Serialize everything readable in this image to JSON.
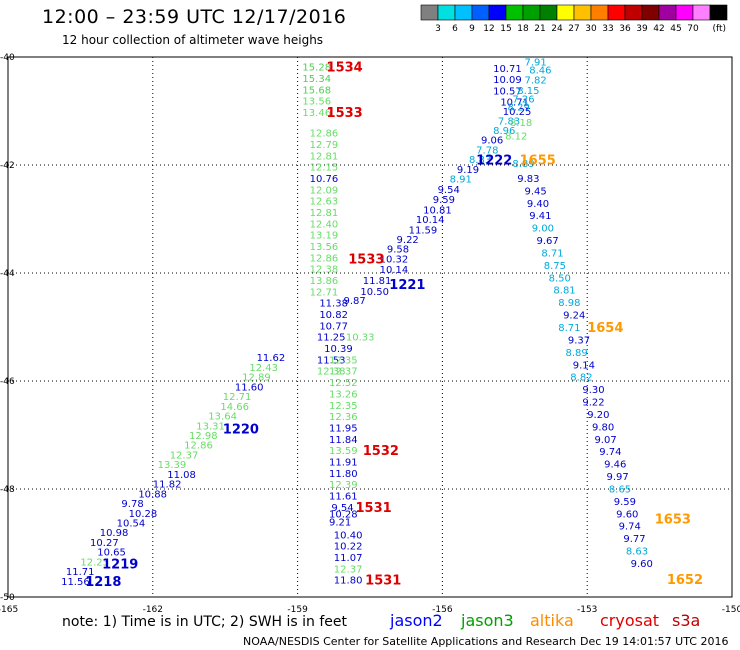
{
  "title": "12:00 – 23:59 UTC 12/17/2016",
  "subtitle": "12 hour collection of altimeter wave heighs",
  "colorbar": {
    "colors": [
      "#808080",
      "#00e0e0",
      "#00c0ff",
      "#0060ff",
      "#0000ff",
      "#00c000",
      "#00a000",
      "#008000",
      "#ffff00",
      "#ffc000",
      "#ff8000",
      "#ff0000",
      "#c00000",
      "#800000",
      "#a000a0",
      "#ff00ff",
      "#ff80ff",
      "#000000"
    ],
    "labels": [
      "3",
      "6",
      "9",
      "12",
      "15",
      "18",
      "21",
      "24",
      "27",
      "30",
      "33",
      "36",
      "39",
      "42",
      "45",
      "70"
    ],
    "unit": "(ft)"
  },
  "footer": {
    "note": "note: 1) Time is in UTC; 2) SWH is in feet",
    "credit": "NOAA/NESDIS Center for Satellite Applications and Research",
    "timestamp": "Dec 19 14:01:57 UTC 2016"
  },
  "legend": [
    {
      "name": "jason2",
      "color": "#0000ff"
    },
    {
      "name": "jason3",
      "color": "#00a000"
    },
    {
      "name": "altika",
      "color": "#ff8c00"
    },
    {
      "name": "cryosat",
      "color": "#e00000"
    },
    {
      "name": "s3a",
      "color": "#c00000"
    }
  ],
  "colors": {
    "light_green": "#66dd66",
    "green": "#55cc55",
    "dark_blue": "#0000cc",
    "cyan": "#00aadd",
    "red": "#dd0000",
    "orange": "#ff9900"
  },
  "chart_data": {
    "type": "scatter",
    "xlim": [
      -165,
      -150
    ],
    "ylim": [
      -50,
      -40
    ],
    "xticks": [
      -165,
      -162,
      -159,
      -156,
      -153,
      -150
    ],
    "xtick_labels": [
      "-165",
      "-162",
      "-159",
      "-156",
      "-153",
      "-150"
    ],
    "yticks": [
      -40,
      -42,
      -44,
      -46,
      -48,
      -50
    ],
    "ytick_labels": [
      "-40",
      "-42",
      "-44",
      "-46",
      "-48",
      "-50"
    ],
    "grid": true,
    "points": [
      {
        "x": -158.9,
        "y": -40.18,
        "v": "15.28",
        "c": "dgreen"
      },
      {
        "x": -158.9,
        "y": -40.39,
        "v": "15.34",
        "c": "dgreen"
      },
      {
        "x": -158.9,
        "y": -40.6,
        "v": "15.68",
        "c": "dgreen"
      },
      {
        "x": -158.9,
        "y": -40.81,
        "v": "13.56",
        "c": "lgreen"
      },
      {
        "x": -158.9,
        "y": -41.02,
        "v": "13.46",
        "c": "lgreen"
      },
      {
        "x": -158.75,
        "y": -41.4,
        "v": "12.86",
        "c": "lgreen"
      },
      {
        "x": -158.75,
        "y": -41.61,
        "v": "12.79",
        "c": "lgreen"
      },
      {
        "x": -158.75,
        "y": -41.82,
        "v": "12.81",
        "c": "lgreen"
      },
      {
        "x": -158.75,
        "y": -42.03,
        "v": "12.15",
        "c": "lgreen"
      },
      {
        "x": -158.75,
        "y": -42.24,
        "v": "10.76",
        "c": "blue"
      },
      {
        "x": -158.75,
        "y": -42.45,
        "v": "12.09",
        "c": "lgreen"
      },
      {
        "x": -158.75,
        "y": -42.66,
        "v": "12.63",
        "c": "lgreen"
      },
      {
        "x": -158.75,
        "y": -42.87,
        "v": "12.81",
        "c": "lgreen"
      },
      {
        "x": -158.75,
        "y": -43.08,
        "v": "12.40",
        "c": "lgreen"
      },
      {
        "x": -158.75,
        "y": -43.29,
        "v": "13.19",
        "c": "lgreen"
      },
      {
        "x": -158.75,
        "y": -43.5,
        "v": "13.56",
        "c": "lgreen"
      },
      {
        "x": -158.75,
        "y": -43.71,
        "v": "12.86",
        "c": "lgreen"
      },
      {
        "x": -158.75,
        "y": -43.92,
        "v": "12.38",
        "c": "lgreen"
      },
      {
        "x": -158.75,
        "y": -44.13,
        "v": "13.86",
        "c": "lgreen"
      },
      {
        "x": -158.75,
        "y": -44.34,
        "v": "12.71",
        "c": "lgreen"
      },
      {
        "x": -158.55,
        "y": -44.55,
        "v": "11.38",
        "c": "blue"
      },
      {
        "x": -158.55,
        "y": -44.76,
        "v": "10.82",
        "c": "blue"
      },
      {
        "x": -158.55,
        "y": -44.97,
        "v": "10.77",
        "c": "blue"
      },
      {
        "x": -158.6,
        "y": -45.18,
        "v": "11.25",
        "c": "blue"
      },
      {
        "x": -158.45,
        "y": -45.39,
        "v": "10.39",
        "c": "blue"
      },
      {
        "x": -158.6,
        "y": -45.6,
        "v": "11.53",
        "c": "blue"
      },
      {
        "x": -158.35,
        "y": -45.6,
        "v": "12.35",
        "c": "lgreen"
      },
      {
        "x": -158.6,
        "y": -45.81,
        "v": "12.38",
        "c": "lgreen"
      },
      {
        "x": -158.35,
        "y": -45.81,
        "v": "12.37",
        "c": "lgreen"
      },
      {
        "x": -158.35,
        "y": -46.02,
        "v": "12.52",
        "c": "lgreen"
      },
      {
        "x": -158.35,
        "y": -46.23,
        "v": "13.26",
        "c": "lgreen"
      },
      {
        "x": -158.35,
        "y": -46.44,
        "v": "12.35",
        "c": "lgreen"
      },
      {
        "x": -158.35,
        "y": -46.65,
        "v": "12.36",
        "c": "lgreen"
      },
      {
        "x": -158.35,
        "y": -46.86,
        "v": "11.95",
        "c": "blue"
      },
      {
        "x": -158.35,
        "y": -47.07,
        "v": "11.84",
        "c": "blue"
      },
      {
        "x": -158.35,
        "y": -47.28,
        "v": "13.59",
        "c": "lgreen"
      },
      {
        "x": -158.35,
        "y": -47.49,
        "v": "11.91",
        "c": "blue"
      },
      {
        "x": -158.35,
        "y": -47.7,
        "v": "11.80",
        "c": "blue"
      },
      {
        "x": -158.35,
        "y": -47.91,
        "v": "12.39",
        "c": "lgreen"
      },
      {
        "x": -158.35,
        "y": -48.12,
        "v": "11.61",
        "c": "blue"
      },
      {
        "x": -158.3,
        "y": -48.33,
        "v": "9.54",
        "c": "blue"
      },
      {
        "x": -158.35,
        "y": -48.45,
        "v": "10.28",
        "c": "blue"
      },
      {
        "x": -158.35,
        "y": -48.6,
        "v": "9.21",
        "c": "blue"
      },
      {
        "x": -158.25,
        "y": -48.84,
        "v": "10.40",
        "c": "blue"
      },
      {
        "x": -158.25,
        "y": -49.05,
        "v": "10.22",
        "c": "blue"
      },
      {
        "x": -158.25,
        "y": -49.26,
        "v": "11.07",
        "c": "blue"
      },
      {
        "x": -158.25,
        "y": -49.47,
        "v": "12.37",
        "c": "lgreen"
      },
      {
        "x": -158.25,
        "y": -49.68,
        "v": "11.80",
        "c": "blue"
      },
      {
        "x": -163.9,
        "y": -49.7,
        "v": "11.56",
        "c": "blue"
      },
      {
        "x": -163.8,
        "y": -49.52,
        "v": "11.71",
        "c": "blue"
      },
      {
        "x": -163.5,
        "y": -49.34,
        "v": "12.23",
        "c": "lgreen"
      },
      {
        "x": -163.15,
        "y": -49.16,
        "v": "10.65",
        "c": "blue"
      },
      {
        "x": -163.3,
        "y": -48.98,
        "v": "10.27",
        "c": "blue"
      },
      {
        "x": -163.1,
        "y": -48.8,
        "v": "10.98",
        "c": "blue"
      },
      {
        "x": -162.75,
        "y": -48.62,
        "v": "10.54",
        "c": "blue"
      },
      {
        "x": -162.5,
        "y": -48.44,
        "v": "10.28",
        "c": "blue"
      },
      {
        "x": -162.65,
        "y": -48.26,
        "v": "9.78",
        "c": "blue"
      },
      {
        "x": -162.3,
        "y": -48.08,
        "v": "10.88",
        "c": "blue"
      },
      {
        "x": -162.0,
        "y": -47.9,
        "v": "11.82",
        "c": "blue"
      },
      {
        "x": -161.7,
        "y": -47.72,
        "v": "11.08",
        "c": "blue"
      },
      {
        "x": -161.9,
        "y": -47.54,
        "v": "13.39",
        "c": "lgreen"
      },
      {
        "x": -161.65,
        "y": -47.36,
        "v": "12.37",
        "c": "lgreen"
      },
      {
        "x": -161.35,
        "y": -47.18,
        "v": "12.86",
        "c": "lgreen"
      },
      {
        "x": -161.25,
        "y": -47.0,
        "v": "12.98",
        "c": "lgreen"
      },
      {
        "x": -161.1,
        "y": -46.82,
        "v": "13.31",
        "c": "lgreen"
      },
      {
        "x": -160.85,
        "y": -46.64,
        "v": "13.64",
        "c": "lgreen"
      },
      {
        "x": -160.6,
        "y": -46.46,
        "v": "14.66",
        "c": "lgreen"
      },
      {
        "x": -160.55,
        "y": -46.28,
        "v": "12.71",
        "c": "lgreen"
      },
      {
        "x": -160.3,
        "y": -46.1,
        "v": "11.60",
        "c": "blue"
      },
      {
        "x": -160.15,
        "y": -45.92,
        "v": "12.89",
        "c": "lgreen"
      },
      {
        "x": -160.0,
        "y": -45.74,
        "v": "12.43",
        "c": "lgreen"
      },
      {
        "x": -159.85,
        "y": -45.56,
        "v": "11.62",
        "c": "blue"
      },
      {
        "x": -158.0,
        "y": -45.18,
        "v": "10.33",
        "c": "lgreen"
      },
      {
        "x": -158.05,
        "y": -44.5,
        "v": "9.87",
        "c": "blue"
      },
      {
        "x": -157.7,
        "y": -44.33,
        "v": "10.50",
        "c": "blue"
      },
      {
        "x": -157.65,
        "y": -44.13,
        "v": "11.81",
        "c": "blue"
      },
      {
        "x": -157.3,
        "y": -43.93,
        "v": "10.14",
        "c": "blue"
      },
      {
        "x": -157.3,
        "y": -43.73,
        "v": "10.32",
        "c": "blue"
      },
      {
        "x": -157.15,
        "y": -43.55,
        "v": "9.58",
        "c": "blue"
      },
      {
        "x": -156.95,
        "y": -43.37,
        "v": "9.22",
        "c": "blue"
      },
      {
        "x": -156.7,
        "y": -43.19,
        "v": "11.59",
        "c": "blue"
      },
      {
        "x": -156.55,
        "y": -43.0,
        "v": "10.14",
        "c": "blue"
      },
      {
        "x": -156.4,
        "y": -42.82,
        "v": "10.81",
        "c": "blue"
      },
      {
        "x": -156.2,
        "y": -42.63,
        "v": "9.59",
        "c": "blue"
      },
      {
        "x": -156.1,
        "y": -42.44,
        "v": "9.54",
        "c": "blue"
      },
      {
        "x": -155.85,
        "y": -42.25,
        "v": "8.91",
        "c": "cyan"
      },
      {
        "x": -155.7,
        "y": -42.07,
        "v": "9.19",
        "c": "blue"
      },
      {
        "x": -155.45,
        "y": -41.89,
        "v": "8.83",
        "c": "cyan"
      },
      {
        "x": -155.3,
        "y": -41.71,
        "v": "7.78",
        "c": "cyan"
      },
      {
        "x": -155.2,
        "y": -41.53,
        "v": "9.06",
        "c": "blue"
      },
      {
        "x": -154.95,
        "y": -41.35,
        "v": "8.96",
        "c": "cyan"
      },
      {
        "x": -154.85,
        "y": -41.18,
        "v": "7.83",
        "c": "cyan"
      },
      {
        "x": -154.75,
        "y": -41.0,
        "v": "10.25",
        "c": "blue"
      },
      {
        "x": -154.8,
        "y": -40.82,
        "v": "10.71",
        "c": "blue"
      },
      {
        "x": -154.95,
        "y": -40.62,
        "v": "10.57",
        "c": "blue"
      },
      {
        "x": -154.95,
        "y": -40.41,
        "v": "10.09",
        "c": "blue"
      },
      {
        "x": -154.95,
        "y": -40.2,
        "v": "10.71",
        "c": "blue"
      },
      {
        "x": -154.3,
        "y": -40.08,
        "v": "7.91",
        "c": "cyan"
      },
      {
        "x": -154.2,
        "y": -40.23,
        "v": "8.46",
        "c": "cyan"
      },
      {
        "x": -154.3,
        "y": -40.42,
        "v": "7.82",
        "c": "cyan"
      },
      {
        "x": -154.45,
        "y": -40.61,
        "v": "8.15",
        "c": "cyan"
      },
      {
        "x": -154.55,
        "y": -40.77,
        "v": "7.26",
        "c": "cyan"
      },
      {
        "x": -154.65,
        "y": -40.92,
        "v": "8.29",
        "c": "cyan"
      },
      {
        "x": -154.6,
        "y": -41.2,
        "v": "8.18",
        "c": "lgreen"
      },
      {
        "x": -154.7,
        "y": -41.45,
        "v": "8.12",
        "c": "lgreen"
      },
      {
        "x": -154.55,
        "y": -41.96,
        "v": "8.89",
        "c": "cyan"
      },
      {
        "x": -154.45,
        "y": -42.24,
        "v": "9.83",
        "c": "blue"
      },
      {
        "x": -154.3,
        "y": -42.47,
        "v": "9.45",
        "c": "blue"
      },
      {
        "x": -154.25,
        "y": -42.7,
        "v": "9.40",
        "c": "blue"
      },
      {
        "x": -154.2,
        "y": -42.93,
        "v": "9.41",
        "c": "blue"
      },
      {
        "x": -154.15,
        "y": -43.16,
        "v": "9.00",
        "c": "cyan"
      },
      {
        "x": -154.05,
        "y": -43.39,
        "v": "9.67",
        "c": "blue"
      },
      {
        "x": -153.95,
        "y": -43.62,
        "v": "8.71",
        "c": "cyan"
      },
      {
        "x": -153.9,
        "y": -43.85,
        "v": "8.75",
        "c": "cyan"
      },
      {
        "x": -153.8,
        "y": -44.08,
        "v": "8.50",
        "c": "cyan"
      },
      {
        "x": -153.7,
        "y": -44.31,
        "v": "8.81",
        "c": "cyan"
      },
      {
        "x": -153.6,
        "y": -44.54,
        "v": "8.98",
        "c": "cyan"
      },
      {
        "x": -153.5,
        "y": -44.77,
        "v": "9.24",
        "c": "blue"
      },
      {
        "x": -153.6,
        "y": -45.0,
        "v": "8.71",
        "c": "cyan"
      },
      {
        "x": -153.4,
        "y": -45.23,
        "v": "9.37",
        "c": "blue"
      },
      {
        "x": -153.45,
        "y": -45.46,
        "v": "8.89",
        "c": "cyan"
      },
      {
        "x": -153.3,
        "y": -45.69,
        "v": "9.14",
        "c": "blue"
      },
      {
        "x": -153.35,
        "y": -45.92,
        "v": "8.82",
        "c": "cyan"
      },
      {
        "x": -153.1,
        "y": -46.15,
        "v": "9.30",
        "c": "blue"
      },
      {
        "x": -153.1,
        "y": -46.38,
        "v": "9.22",
        "c": "blue"
      },
      {
        "x": -153.0,
        "y": -46.61,
        "v": "9.20",
        "c": "blue"
      },
      {
        "x": -152.9,
        "y": -46.84,
        "v": "9.80",
        "c": "blue"
      },
      {
        "x": -152.85,
        "y": -47.07,
        "v": "9.07",
        "c": "blue"
      },
      {
        "x": -152.75,
        "y": -47.3,
        "v": "9.74",
        "c": "blue"
      },
      {
        "x": -152.65,
        "y": -47.53,
        "v": "9.46",
        "c": "blue"
      },
      {
        "x": -152.6,
        "y": -47.76,
        "v": "9.97",
        "c": "blue"
      },
      {
        "x": -152.55,
        "y": -47.99,
        "v": "8.65",
        "c": "cyan"
      },
      {
        "x": -152.45,
        "y": -48.22,
        "v": "9.59",
        "c": "blue"
      },
      {
        "x": -152.4,
        "y": -48.45,
        "v": "9.60",
        "c": "blue"
      },
      {
        "x": -152.35,
        "y": -48.68,
        "v": "9.74",
        "c": "blue"
      },
      {
        "x": -152.25,
        "y": -48.91,
        "v": "9.77",
        "c": "blue"
      },
      {
        "x": -152.2,
        "y": -49.14,
        "v": "8.63",
        "c": "cyan"
      },
      {
        "x": -152.1,
        "y": -49.37,
        "v": "9.60",
        "c": "blue"
      }
    ],
    "labels": [
      {
        "x": -158.4,
        "y": -40.18,
        "t": "1534",
        "c": "red"
      },
      {
        "x": -158.4,
        "y": -41.02,
        "t": "1533",
        "c": "red"
      },
      {
        "x": -157.95,
        "y": -43.73,
        "t": "1533",
        "c": "red"
      },
      {
        "x": -157.65,
        "y": -47.28,
        "t": "1532",
        "c": "red"
      },
      {
        "x": -157.8,
        "y": -48.33,
        "t": "1531",
        "c": "red"
      },
      {
        "x": -157.6,
        "y": -49.68,
        "t": "1531",
        "c": "red"
      },
      {
        "x": -160.55,
        "y": -46.88,
        "t": "1220",
        "c": "dblue"
      },
      {
        "x": -157.1,
        "y": -44.2,
        "t": "1221",
        "c": "dblue"
      },
      {
        "x": -155.3,
        "y": -41.9,
        "t": "1222",
        "c": "dblue"
      },
      {
        "x": -163.05,
        "y": -49.38,
        "t": "1219",
        "c": "dblue"
      },
      {
        "x": -163.4,
        "y": -49.7,
        "t": "1218",
        "c": "dblue"
      },
      {
        "x": -154.4,
        "y": -41.9,
        "t": "1655",
        "c": "orange"
      },
      {
        "x": -153.0,
        "y": -45.0,
        "t": "1654",
        "c": "orange"
      },
      {
        "x": -151.6,
        "y": -48.55,
        "t": "1653",
        "c": "orange"
      },
      {
        "x": -151.35,
        "y": -49.67,
        "t": "1652",
        "c": "orange"
      }
    ]
  }
}
